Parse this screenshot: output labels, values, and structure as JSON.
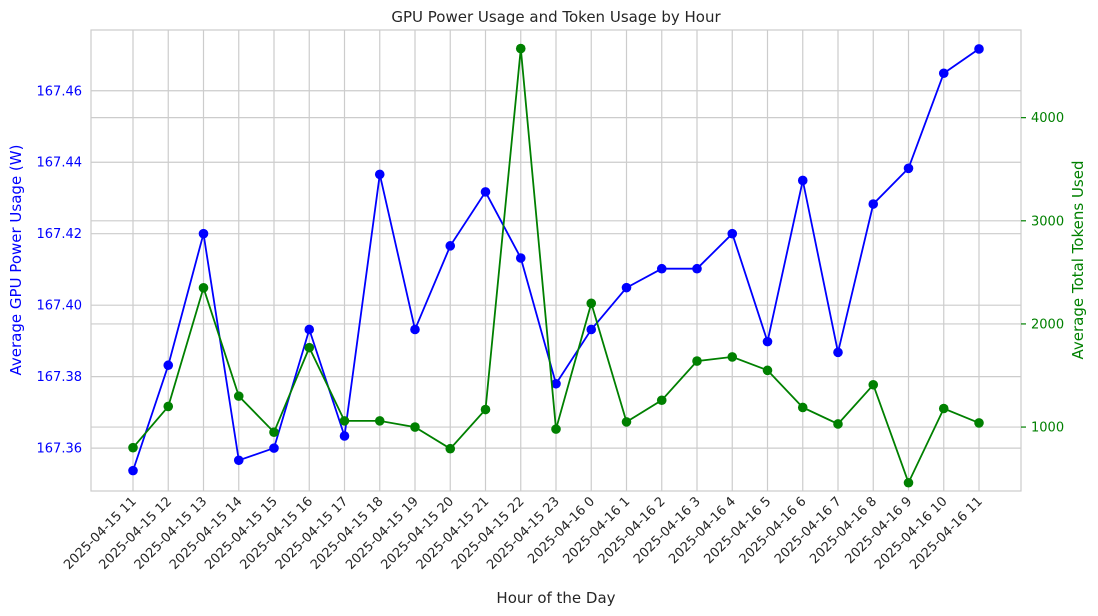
{
  "chart_data": {
    "type": "line",
    "title": "GPU Power Usage and Token Usage by Hour",
    "xlabel": "Hour of the Day",
    "ylabel_left": "Average GPU Power Usage (W)",
    "ylabel_right": "Average Total Tokens Used",
    "categories": [
      "2025-04-15 11",
      "2025-04-15 12",
      "2025-04-15 13",
      "2025-04-15 14",
      "2025-04-15 15",
      "2025-04-15 16",
      "2025-04-15 17",
      "2025-04-15 18",
      "2025-04-15 19",
      "2025-04-15 20",
      "2025-04-15 21",
      "2025-04-15 22",
      "2025-04-15 23",
      "2025-04-16 0",
      "2025-04-16 1",
      "2025-04-16 2",
      "2025-04-16 3",
      "2025-04-16 4",
      "2025-04-16 5",
      "2025-04-16 6",
      "2025-04-16 7",
      "2025-04-16 8",
      "2025-04-16 9",
      "2025-04-16 10",
      "2025-04-16 11"
    ],
    "left_axis": {
      "ylim": [
        167.348,
        167.477
      ],
      "ticks": [
        "167.36",
        "167.38",
        "167.40",
        "167.42",
        "167.44",
        "167.46"
      ],
      "color": "#0000ff"
    },
    "right_axis": {
      "ylim": [
        380,
        4850
      ],
      "ticks": [
        "1000",
        "2000",
        "3000",
        "4000"
      ],
      "color": "#008000"
    },
    "series": [
      {
        "axis": "left",
        "color": "#0000ff",
        "values": [
          167.3537,
          167.3832,
          167.42,
          167.3566,
          167.36,
          167.3932,
          167.3634,
          167.4366,
          167.3932,
          167.4166,
          167.4317,
          167.4132,
          167.378,
          167.3932,
          167.4049,
          167.4102,
          167.4102,
          167.42,
          167.3898,
          167.4349,
          167.3868,
          167.4283,
          167.4383,
          167.4649,
          167.4717
        ]
      },
      {
        "axis": "right",
        "color": "#008000",
        "values": [
          800,
          1200,
          2350,
          1300,
          950,
          1770,
          1060,
          1060,
          1000,
          790,
          1170,
          4670,
          980,
          2200,
          1050,
          1260,
          1640,
          1680,
          1550,
          1190,
          1030,
          1410,
          460,
          1180,
          1040
        ]
      }
    ],
    "grid": true
  }
}
